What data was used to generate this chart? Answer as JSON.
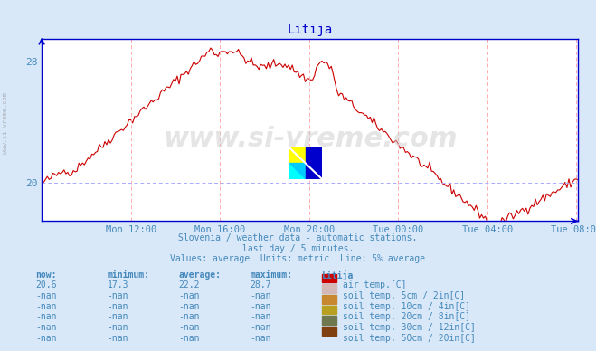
{
  "title": "Litija",
  "bg_color": "#d8e8f8",
  "plot_bg_color": "#ffffff",
  "line_color": "#cc0000",
  "grid_color": "#ffaaaa",
  "grid_color2": "#aaaaff",
  "axis_color": "#0000cc",
  "text_color": "#4488bb",
  "subtitle1": "Slovenia / weather data - automatic stations.",
  "subtitle2": "last day / 5 minutes.",
  "subtitle3": "Values: average  Units: metric  Line: 5% average",
  "xlabels": [
    "Mon 12:00",
    "Mon 16:00",
    "Mon 20:00",
    "Tue 00:00",
    "Tue 04:00",
    "Tue 08:00"
  ],
  "ylabels": [
    "20",
    "28"
  ],
  "ylim": [
    17.5,
    29.5
  ],
  "table_headers": [
    "now:",
    "minimum:",
    "average:",
    "maximum:",
    "Litija"
  ],
  "table_rows": [
    [
      "20.6",
      "17.3",
      "22.2",
      "28.7",
      "#cc0000",
      "air temp.[C]"
    ],
    [
      "-nan",
      "-nan",
      "-nan",
      "-nan",
      "#d4b8b8",
      "soil temp. 5cm / 2in[C]"
    ],
    [
      "-nan",
      "-nan",
      "-nan",
      "-nan",
      "#c88830",
      "soil temp. 10cm / 4in[C]"
    ],
    [
      "-nan",
      "-nan",
      "-nan",
      "-nan",
      "#b8a020",
      "soil temp. 20cm / 8in[C]"
    ],
    [
      "-nan",
      "-nan",
      "-nan",
      "-nan",
      "#707850",
      "soil temp. 30cm / 12in[C]"
    ],
    [
      "-nan",
      "-nan",
      "-nan",
      "-nan",
      "#804010",
      "soil temp. 50cm / 20in[C]"
    ]
  ],
  "watermark": "www.si-vreme.com",
  "left_text": "www.si-vreme.com"
}
